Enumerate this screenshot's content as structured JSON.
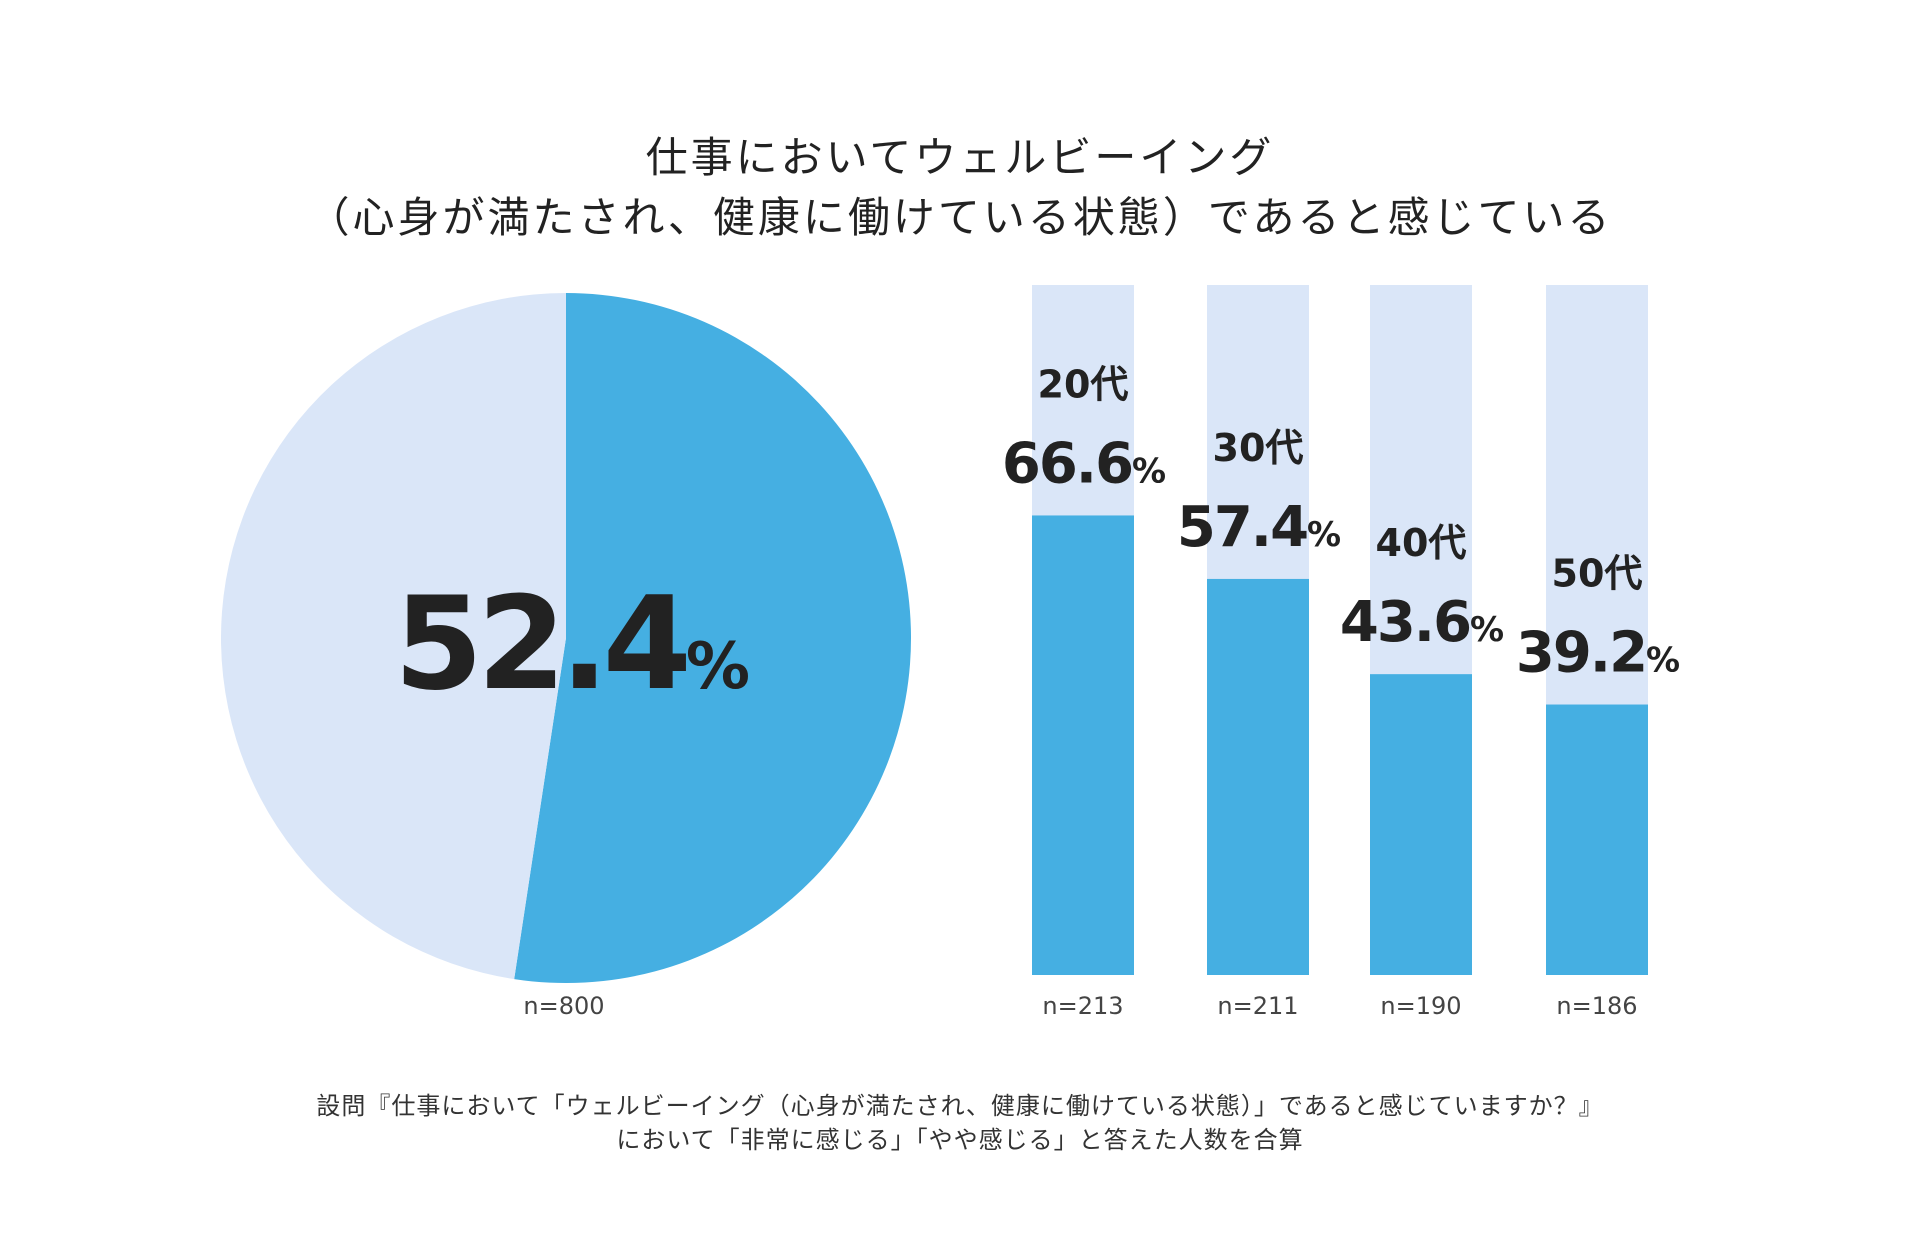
{
  "title_line1": "仕事においてウェルビーイング",
  "title_line2": "（心身が満たされ、健康に働けている状態）であると感じている",
  "colors": {
    "fill": "#45AFE2",
    "background_fill": "#DAE6F8",
    "text": "#222222"
  },
  "chart_data": [
    {
      "type": "pie",
      "values": [
        52.4,
        47.6
      ],
      "label": "52.4",
      "unit": "%",
      "n_label": "n=800"
    },
    {
      "type": "bar",
      "stacked_to": 100,
      "ylim": [
        0,
        100
      ],
      "categories": [
        "20代",
        "30代",
        "40代",
        "50代"
      ],
      "values": [
        66.6,
        57.4,
        43.6,
        39.2
      ],
      "value_labels": [
        "66.6",
        "57.4",
        "43.6",
        "39.2"
      ],
      "unit": "%",
      "n_labels": [
        "n=213",
        "n=211",
        "n=190",
        "n=186"
      ]
    }
  ],
  "footnote_line1": "設問『仕事において「ウェルビーイング（心身が満たされ、健康に働けている状態）」であると感じていますか？』",
  "footnote_line2": "において「非常に感じる」「やや感じる」と答えた人数を合算"
}
